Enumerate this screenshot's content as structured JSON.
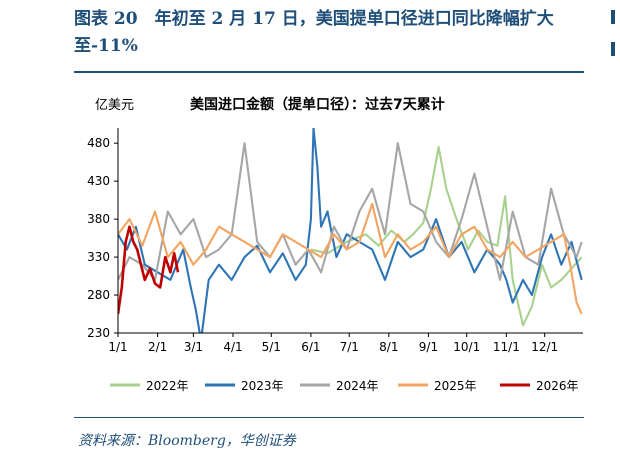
{
  "figure": {
    "title": "图表 20　年初至 2 月 17 日，美国提单口径进口同比降幅扩大至-11%",
    "source": "资料来源：Bloomberg，华创证券"
  },
  "colors": {
    "brand": "#1f4e79",
    "2022": "#a9d18e",
    "2023": "#2e75b6",
    "2024": "#a6a6a6",
    "2025": "#f4a460",
    "2026": "#c00000"
  },
  "chart_data": {
    "type": "line",
    "title": "美国进口金额（提单口径）：过去7天累计",
    "ylabel": "亿美元",
    "xlabel": "",
    "ylim": [
      230,
      500
    ],
    "yticks": [
      230,
      280,
      330,
      380,
      430,
      480
    ],
    "xticks": [
      "1/1",
      "2/1",
      "3/1",
      "4/1",
      "5/1",
      "6/1",
      "7/1",
      "8/1",
      "9/1",
      "10/1",
      "11/1",
      "12/1"
    ],
    "x_unit": "day of year",
    "grid": false,
    "legend_position": "bottom",
    "series": [
      {
        "name": "2022年",
        "color": "#a9d18e",
        "x": [
          152,
          165,
          180,
          195,
          205,
          215,
          225,
          232,
          240,
          246,
          252,
          258,
          266,
          275,
          283,
          290,
          298,
          304,
          310,
          318,
          325,
          333,
          340,
          348,
          356,
          364
        ],
        "y": [
          340,
          335,
          350,
          360,
          345,
          365,
          350,
          360,
          375,
          420,
          475,
          420,
          380,
          340,
          365,
          350,
          345,
          410,
          300,
          240,
          265,
          320,
          290,
          300,
          315,
          330
        ]
      },
      {
        "name": "2023年",
        "color": "#2e75b6",
        "x": [
          1,
          8,
          15,
          22,
          32,
          42,
          52,
          58,
          62,
          66,
          72,
          80,
          90,
          100,
          110,
          120,
          130,
          140,
          148,
          152,
          154,
          157,
          160,
          165,
          172,
          180,
          190,
          200,
          210,
          220,
          230,
          240,
          250,
          260,
          270,
          280,
          290,
          300,
          305,
          310,
          318,
          325,
          333,
          340,
          348,
          356,
          364
        ],
        "y": [
          360,
          340,
          370,
          320,
          310,
          300,
          340,
          290,
          260,
          220,
          300,
          320,
          300,
          330,
          345,
          310,
          335,
          300,
          320,
          380,
          500,
          450,
          370,
          390,
          330,
          360,
          350,
          340,
          300,
          350,
          330,
          340,
          380,
          330,
          350,
          310,
          340,
          320,
          300,
          270,
          300,
          280,
          330,
          360,
          320,
          350,
          300
        ]
      },
      {
        "name": "2024年",
        "color": "#a6a6a6",
        "x": [
          1,
          10,
          20,
          30,
          40,
          50,
          60,
          70,
          80,
          90,
          100,
          110,
          120,
          130,
          140,
          150,
          160,
          170,
          180,
          190,
          200,
          210,
          220,
          230,
          240,
          250,
          260,
          270,
          280,
          290,
          300,
          310,
          320,
          330,
          340,
          350,
          360,
          364
        ],
        "y": [
          300,
          330,
          320,
          300,
          390,
          360,
          380,
          330,
          340,
          360,
          480,
          350,
          330,
          360,
          320,
          340,
          310,
          370,
          340,
          390,
          420,
          360,
          480,
          400,
          390,
          350,
          330,
          380,
          440,
          370,
          300,
          390,
          330,
          320,
          420,
          360,
          330,
          350
        ]
      },
      {
        "name": "2025年",
        "color": "#f4a460",
        "x": [
          1,
          10,
          20,
          30,
          40,
          50,
          60,
          70,
          80,
          90,
          100,
          110,
          120,
          130,
          140,
          150,
          160,
          170,
          180,
          190,
          200,
          210,
          220,
          230,
          240,
          250,
          260,
          270,
          280,
          290,
          300,
          310,
          320,
          330,
          340,
          350,
          355,
          360,
          364
        ],
        "y": [
          360,
          380,
          345,
          390,
          330,
          350,
          320,
          340,
          370,
          360,
          350,
          340,
          330,
          360,
          350,
          340,
          330,
          360,
          340,
          350,
          400,
          330,
          360,
          340,
          350,
          370,
          330,
          360,
          370,
          340,
          330,
          350,
          330,
          340,
          350,
          360,
          320,
          270,
          255
        ]
      },
      {
        "name": "2026年",
        "color": "#c00000",
        "x": [
          1,
          4,
          7,
          10,
          13,
          16,
          19,
          22,
          26,
          30,
          34,
          38,
          42,
          45,
          48
        ],
        "y": [
          255,
          290,
          350,
          370,
          350,
          340,
          320,
          300,
          315,
          295,
          290,
          330,
          310,
          335,
          310
        ]
      }
    ]
  }
}
